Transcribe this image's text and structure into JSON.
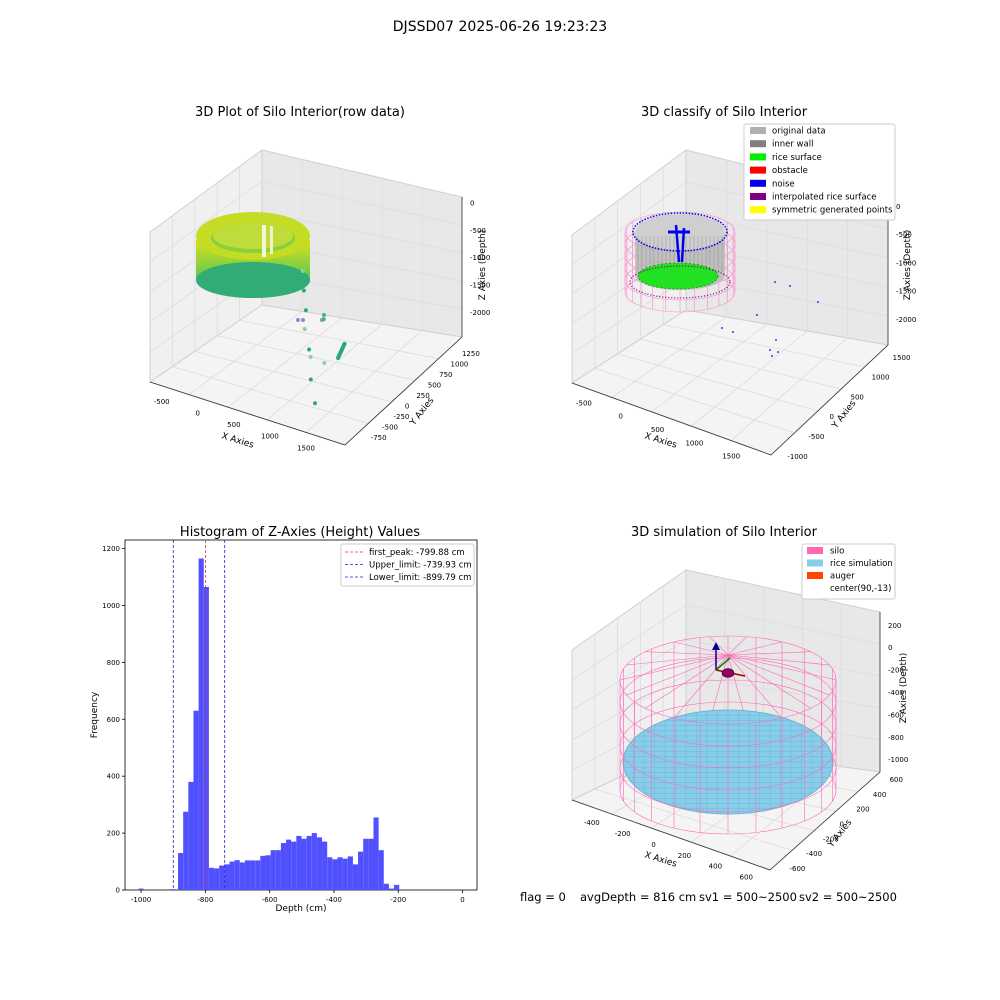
{
  "suptitle": "DJSSD07 2025-06-26 19:23:23",
  "status": {
    "flag": "flag = 0",
    "avg": "avgDepth = 816 cm",
    "sv1": "sv1 = 500~2500",
    "sv2": "sv2 = 500~2500"
  },
  "colors": {
    "hist_bar": "#5050ff",
    "first_peak": "#e03030",
    "limits": "#1f1fd0",
    "silo": "#ff69b4",
    "rice_sim": "#87ceeb",
    "auger": "#ff4500"
  },
  "chart_data": [
    {
      "type": "scatter3d",
      "title": "3D Plot of Silo Interior(row data)",
      "xlabel": "X Axies",
      "ylabel": "Y Axies",
      "zlabel": "Z Axies (Depth)",
      "x_ticks": [
        "-500",
        "0",
        "500",
        "1000",
        "1500"
      ],
      "y_ticks": [
        "-750",
        "-500",
        "-250",
        "0",
        "250",
        "500",
        "750",
        "1000",
        "1250"
      ],
      "z_ticks": [
        "-2000",
        "-1500",
        "-1000",
        "-500",
        "0"
      ],
      "outliers_x": [
        560,
        640,
        730,
        780,
        900,
        980,
        1050,
        1150,
        1300,
        1480
      ],
      "outliers_y": [
        300,
        200,
        100,
        0,
        -100,
        50,
        -300,
        -450,
        -600,
        -700
      ],
      "outliers_z": [
        -900,
        -1100,
        -1300,
        -1500,
        -1700,
        -1300,
        -1600,
        -1800,
        -2000,
        -1200
      ]
    },
    {
      "type": "scatter3d",
      "title": "3D classify of Silo Interior",
      "zlabel": "Z Axies (Depth)",
      "xlabel": "X Axies",
      "ylabel": "Y Axies",
      "x_ticks": [
        "-500",
        "0",
        "500",
        "1000",
        "1500"
      ],
      "y_ticks": [
        "-1000",
        "-500",
        "0",
        "500",
        "1000",
        "1500"
      ],
      "z_ticks": [
        "-2000",
        "-1500",
        "-1000",
        "-500",
        "0"
      ],
      "legend": [
        {
          "label": "original data",
          "color": "#b0b0b0"
        },
        {
          "label": "inner wall",
          "color": "#808080"
        },
        {
          "label": "rice surface",
          "color": "#00ee00"
        },
        {
          "label": "obstacle",
          "color": "#ff0000"
        },
        {
          "label": "noise",
          "color": "#0000ee"
        },
        {
          "label": "interpolated rice surface",
          "color": "#800080"
        },
        {
          "label": "symmetric generated points",
          "color": "#ffff00"
        }
      ]
    },
    {
      "type": "bar",
      "title": "Histogram of Z-Axies (Height) Values",
      "xlabel": "Depth (cm)",
      "ylabel": "Frequency",
      "xlim": [
        -1050,
        45
      ],
      "ylim": [
        0,
        1230
      ],
      "x_ticks": [
        -1000,
        -800,
        -600,
        -400,
        -200,
        0
      ],
      "y_ticks": [
        0,
        200,
        400,
        600,
        800,
        1000,
        1200
      ],
      "bin_start": -885,
      "bin_width": 16,
      "values": [
        130,
        275,
        380,
        630,
        1165,
        1065,
        78,
        76,
        86,
        90,
        100,
        105,
        97,
        104,
        104,
        104,
        120,
        122,
        140,
        140,
        165,
        177,
        170,
        190,
        180,
        190,
        200,
        185,
        170,
        115,
        108,
        115,
        110,
        118,
        90,
        135,
        180,
        180,
        255,
        140,
        22,
        5,
        18
      ],
      "stray_bins": [
        {
          "x": -1000,
          "count": 5
        },
        {
          "x": -900,
          "count": 3
        }
      ],
      "lines": [
        {
          "label": "first_peak: -799.88 cm",
          "x": -799.88
        },
        {
          "label": "Upper_limit: -739.93 cm",
          "x": -739.93
        },
        {
          "label": "Lower_limit: -899.79 cm",
          "x": -899.79
        }
      ]
    },
    {
      "type": "surface3d",
      "title": "3D simulation of Silo Interior",
      "xlabel": "X Axies",
      "ylabel": "Y Axies",
      "zlabel": "Z Axies (Depth)",
      "x_ticks": [
        "-400",
        "-200",
        "0",
        "200",
        "400",
        "600"
      ],
      "y_ticks": [
        "-600",
        "-400",
        "-200",
        "0",
        "200",
        "400",
        "600"
      ],
      "z_ticks": [
        "-1000",
        "-800",
        "-600",
        "-400",
        "-200",
        "0",
        "200"
      ],
      "legend": [
        {
          "label": "silo",
          "color": "#ff69b4"
        },
        {
          "label": "rice simulation",
          "color": "#87ceeb"
        },
        {
          "label": "auger",
          "color": "#ff4500"
        },
        {
          "label": "center(90,-13)",
          "color": ""
        }
      ]
    }
  ]
}
